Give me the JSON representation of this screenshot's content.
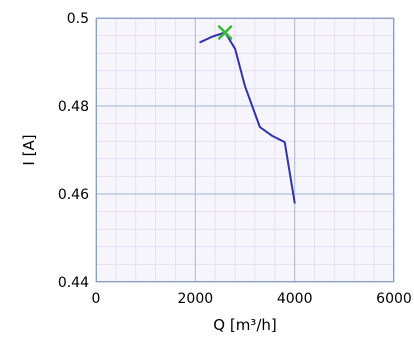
{
  "chart_data": {
    "type": "line",
    "xlabel": "Q [m³/h]",
    "ylabel": "I [A]",
    "xlim": [
      0,
      6000
    ],
    "ylim": [
      0.44,
      0.5
    ],
    "x_ticks": [
      0,
      2000,
      4000,
      6000
    ],
    "y_ticks": [
      0.44,
      0.46,
      0.48,
      0.5
    ],
    "x_tick_labels": [
      "0",
      "2000",
      "4000",
      "6000"
    ],
    "y_tick_labels": [
      "0.44",
      "0.46",
      "0.48",
      "0.5"
    ],
    "grid": true,
    "minor_grid": true,
    "series": [
      {
        "color": "#3333aa",
        "x": [
          2100,
          2350,
          2600,
          2800,
          3000,
          3300,
          3550,
          3800,
          4000
        ],
        "y": [
          0.4945,
          0.4958,
          0.4967,
          0.493,
          0.4845,
          0.4752,
          0.4732,
          0.4718,
          0.458
        ]
      }
    ],
    "marker": {
      "symbol": "x",
      "color": "#33bb33",
      "x": 2600,
      "y": 0.4967
    }
  }
}
